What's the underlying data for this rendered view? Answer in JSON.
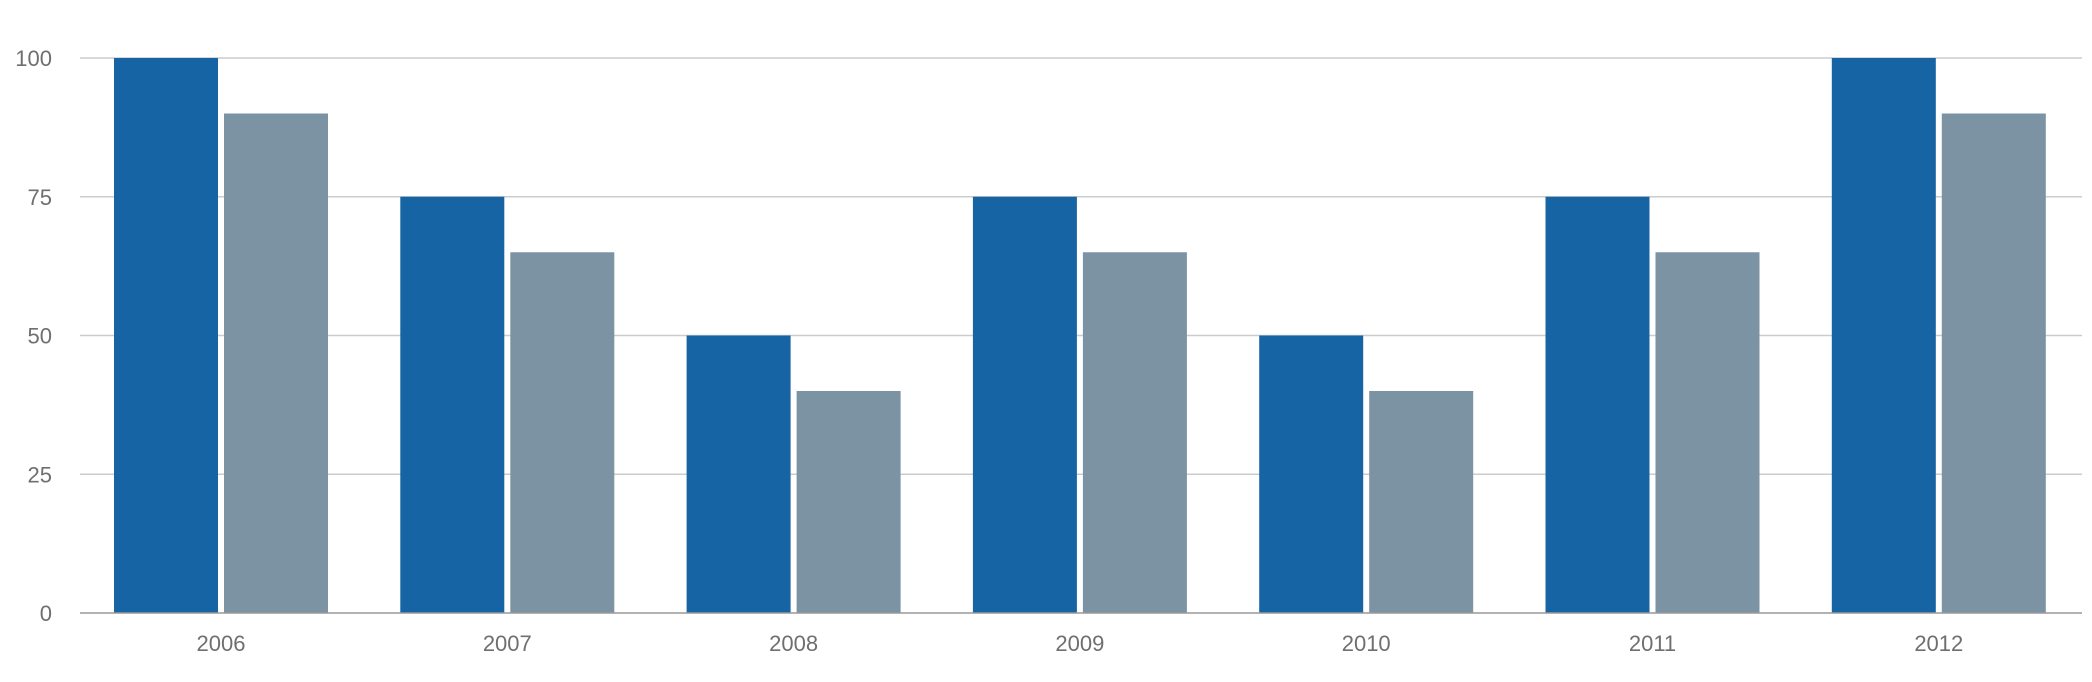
{
  "chart_data": {
    "type": "bar",
    "title": "",
    "xlabel": "",
    "ylabel": "",
    "categories": [
      "2006",
      "2007",
      "2008",
      "2009",
      "2010",
      "2011",
      "2012"
    ],
    "series": [
      {
        "color": "#1764a5",
        "values": [
          100,
          75,
          50,
          75,
          50,
          75,
          100
        ]
      },
      {
        "color": "#7b93a3",
        "values": [
          90,
          65,
          40,
          65,
          40,
          65,
          90
        ]
      }
    ],
    "ylim": [
      0,
      100
    ],
    "yticks": [
      "0",
      "25",
      "50",
      "75",
      "100"
    ],
    "grid": true,
    "legend": "none",
    "colors": {
      "grid": "#cccccc",
      "axis": "#999999",
      "tick_text": "#6f6f6f"
    }
  }
}
